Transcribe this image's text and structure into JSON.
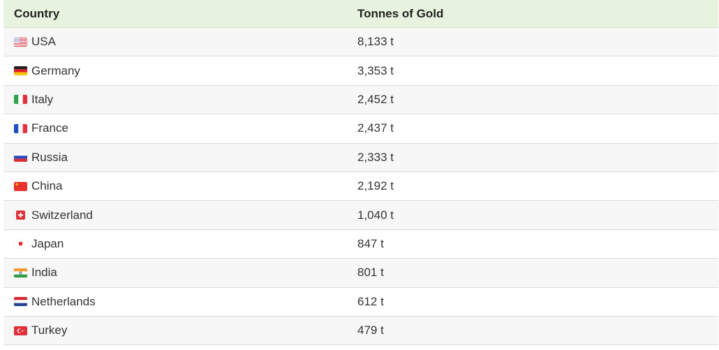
{
  "table": {
    "headers": [
      "Country",
      "Tonnes of Gold"
    ],
    "rows": [
      {
        "country": "USA",
        "flag": "us-flag-icon",
        "value": "8,133 t"
      },
      {
        "country": "Germany",
        "flag": "de-flag-icon",
        "value": "3,353 t"
      },
      {
        "country": "Italy",
        "flag": "it-flag-icon",
        "value": "2,452 t"
      },
      {
        "country": "France",
        "flag": "fr-flag-icon",
        "value": "2,437 t"
      },
      {
        "country": "Russia",
        "flag": "ru-flag-icon",
        "value": "2,333 t"
      },
      {
        "country": "China",
        "flag": "cn-flag-icon",
        "value": "2,192 t"
      },
      {
        "country": "Switzerland",
        "flag": "ch-flag-icon",
        "value": "1,040 t"
      },
      {
        "country": "Japan",
        "flag": "jp-flag-icon",
        "value": "847 t"
      },
      {
        "country": "India",
        "flag": "in-flag-icon",
        "value": "801 t"
      },
      {
        "country": "Netherlands",
        "flag": "nl-flag-icon",
        "value": "612 t"
      },
      {
        "country": "Turkey",
        "flag": "tr-flag-icon",
        "value": "479 t"
      }
    ]
  },
  "colors": {
    "header_bg": "#e8f3df",
    "stripe_bg": "#f7f7f7",
    "border": "#dcdcdc"
  }
}
